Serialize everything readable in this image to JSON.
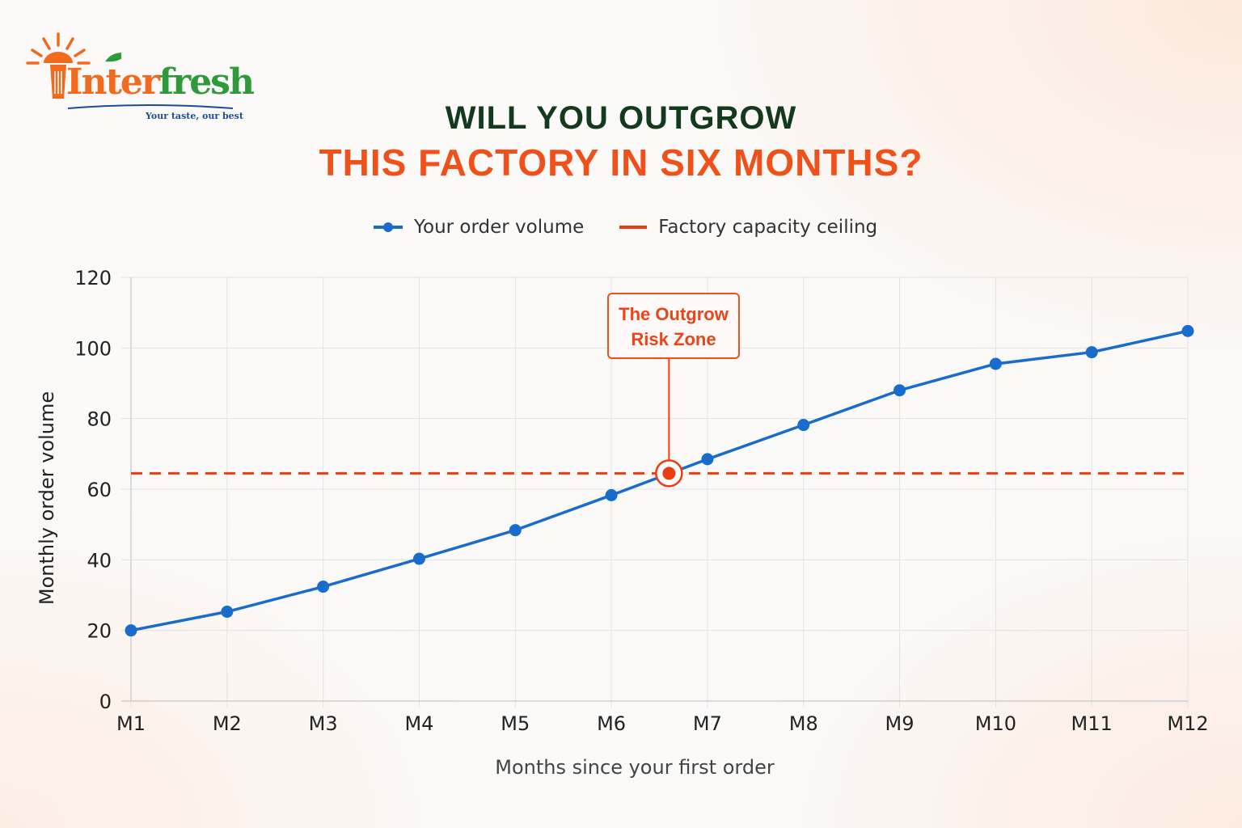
{
  "brand": {
    "name_part1": "Inter",
    "name_part2": "fresh",
    "tagline": "Your taste, our best"
  },
  "headline": {
    "line1": "WILL YOU OUTGROW",
    "line2": "THIS FACTORY IN SIX MONTHS?"
  },
  "callout": {
    "line1": "The Outgrow",
    "line2": "Risk Zone"
  },
  "colors": {
    "series": "#1a6ccc",
    "ceiling": "#ec3d12",
    "title_dark": "#143a1e",
    "title_accent": "#f0501a"
  },
  "chart_data": {
    "type": "line",
    "categories": [
      "M1",
      "M2",
      "M3",
      "M4",
      "M5",
      "M6",
      "M7",
      "M8",
      "M9",
      "M10",
      "M11",
      "M12"
    ],
    "series": [
      {
        "name": "Your order volume",
        "values": [
          20,
          25.3,
          32.4,
          40.3,
          48.4,
          58.3,
          68.5,
          78.2,
          88,
          95.5,
          98.8,
          104.8
        ]
      }
    ],
    "reference_line": {
      "name": "Factory capacity ceiling",
      "value": 64.5,
      "style": "dashed"
    },
    "crossing_point": {
      "x": 6.6,
      "y": 64.5
    },
    "xlabel": "Months since your first order",
    "ylabel": "Monthly order volume",
    "ylim": [
      0,
      120
    ],
    "yticks": [
      0,
      20,
      40,
      60,
      80,
      100,
      120
    ],
    "grid": true,
    "legend_position": "top-center"
  }
}
